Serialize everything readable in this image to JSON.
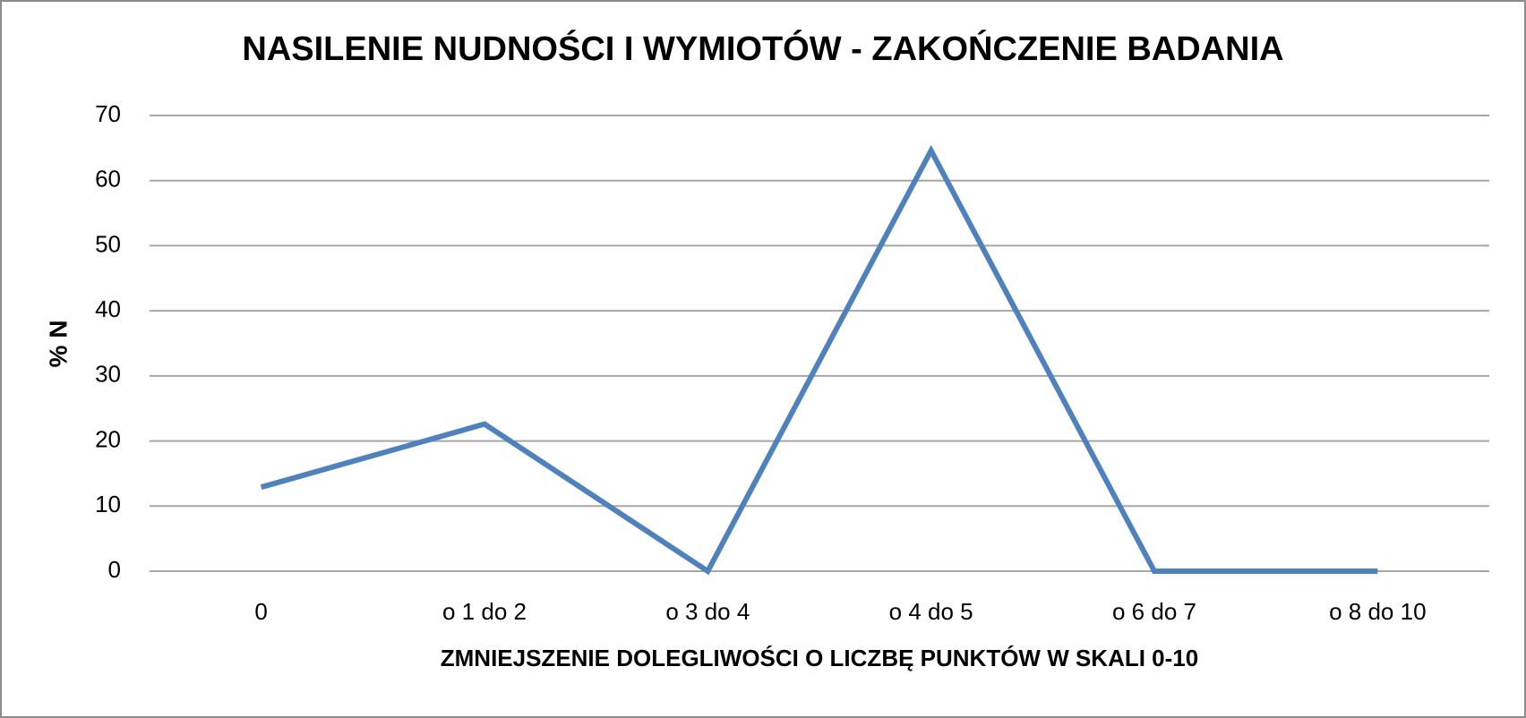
{
  "chart_data": {
    "type": "line",
    "title": "NASILENIE NUDNOŚCI I WYMIOTÓW - ZAKOŃCZENIE BADANIA",
    "x_label": "ZMNIEJSZENIE DOLEGLIWOŚCI O LICZBĘ PUNKTÓW W SKALI 0-10",
    "y_label": "% N",
    "categories": [
      "0",
      "o 1 do 2",
      "o 3 do 4",
      "o 4 do 5",
      "o 6 do 7",
      "o 8 do 10"
    ],
    "series": [
      {
        "color": "#4f81bd",
        "values": [
          12.9,
          22.6,
          0,
          64.6,
          0,
          0
        ]
      }
    ],
    "ylim": [
      0,
      70
    ],
    "yticks": [
      0,
      10,
      20,
      30,
      40,
      50,
      60,
      70
    ],
    "grid": true
  }
}
